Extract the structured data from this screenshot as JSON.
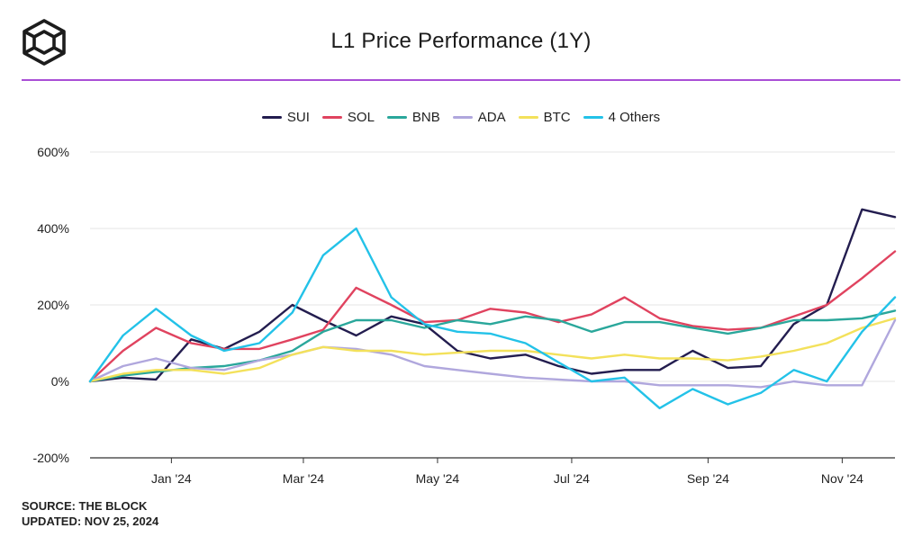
{
  "header": {
    "title": "L1 Price Performance (1Y)",
    "logo_icon": "cube-logo-icon",
    "accent_color": "#a94fd6"
  },
  "footer": {
    "source": "SOURCE: THE BLOCK",
    "updated": "UPDATED: NOV 25, 2024"
  },
  "chart_data": {
    "type": "line",
    "xlabel": "",
    "ylabel": "",
    "ylim": [
      -200,
      600
    ],
    "yticks": [
      600,
      400,
      200,
      0,
      -200
    ],
    "ytick_labels": [
      "600%",
      "400%",
      "200%",
      "0%",
      "-200%"
    ],
    "xlim": [
      "2023-11-25",
      "2024-11-25"
    ],
    "xticks": [
      "2024-01-01",
      "2024-03-01",
      "2024-05-01",
      "2024-07-01",
      "2024-09-01",
      "2024-11-01"
    ],
    "xtick_labels": [
      "Jan '24",
      "Mar '24",
      "May '24",
      "Jul '24",
      "Sep '24",
      "Nov '24"
    ],
    "grid": "horizontal",
    "legend_position": "top-center",
    "x": [
      "2023-11-25",
      "2023-12-10",
      "2023-12-25",
      "2024-01-10",
      "2024-01-25",
      "2024-02-10",
      "2024-02-25",
      "2024-03-10",
      "2024-03-25",
      "2024-04-10",
      "2024-04-25",
      "2024-05-10",
      "2024-05-25",
      "2024-06-10",
      "2024-06-25",
      "2024-07-10",
      "2024-07-25",
      "2024-08-10",
      "2024-08-25",
      "2024-09-10",
      "2024-09-25",
      "2024-10-10",
      "2024-10-25",
      "2024-11-10",
      "2024-11-25"
    ],
    "series": [
      {
        "name": "SUI",
        "color": "#231d4f",
        "values": [
          0,
          10,
          5,
          110,
          85,
          130,
          200,
          160,
          120,
          170,
          150,
          80,
          60,
          70,
          40,
          20,
          30,
          30,
          80,
          35,
          40,
          150,
          200,
          450,
          430
        ]
      },
      {
        "name": "SOL",
        "color": "#e0435f",
        "values": [
          0,
          80,
          140,
          100,
          85,
          85,
          110,
          135,
          245,
          200,
          155,
          160,
          190,
          180,
          155,
          175,
          220,
          165,
          145,
          135,
          140,
          170,
          200,
          270,
          340
        ]
      },
      {
        "name": "BNB",
        "color": "#2aa79b",
        "values": [
          0,
          15,
          25,
          35,
          40,
          55,
          80,
          130,
          160,
          160,
          140,
          160,
          150,
          170,
          160,
          130,
          155,
          155,
          140,
          125,
          140,
          160,
          160,
          165,
          185
        ]
      },
      {
        "name": "ADA",
        "color": "#b0a7dd",
        "values": [
          0,
          40,
          60,
          35,
          30,
          55,
          70,
          90,
          85,
          70,
          40,
          30,
          20,
          10,
          5,
          0,
          0,
          -10,
          -10,
          -10,
          -15,
          0,
          -10,
          -10,
          160
        ]
      },
      {
        "name": "BTC",
        "color": "#f3e15b",
        "values": [
          0,
          20,
          30,
          30,
          20,
          35,
          70,
          90,
          80,
          80,
          70,
          75,
          80,
          80,
          70,
          60,
          70,
          60,
          60,
          55,
          65,
          80,
          100,
          140,
          165
        ]
      },
      {
        "name": "4 Others",
        "color": "#23c2e8",
        "values": [
          0,
          120,
          190,
          120,
          80,
          100,
          180,
          330,
          400,
          220,
          150,
          130,
          125,
          100,
          50,
          0,
          10,
          -70,
          -20,
          -60,
          -30,
          30,
          0,
          130,
          220
        ]
      }
    ]
  }
}
